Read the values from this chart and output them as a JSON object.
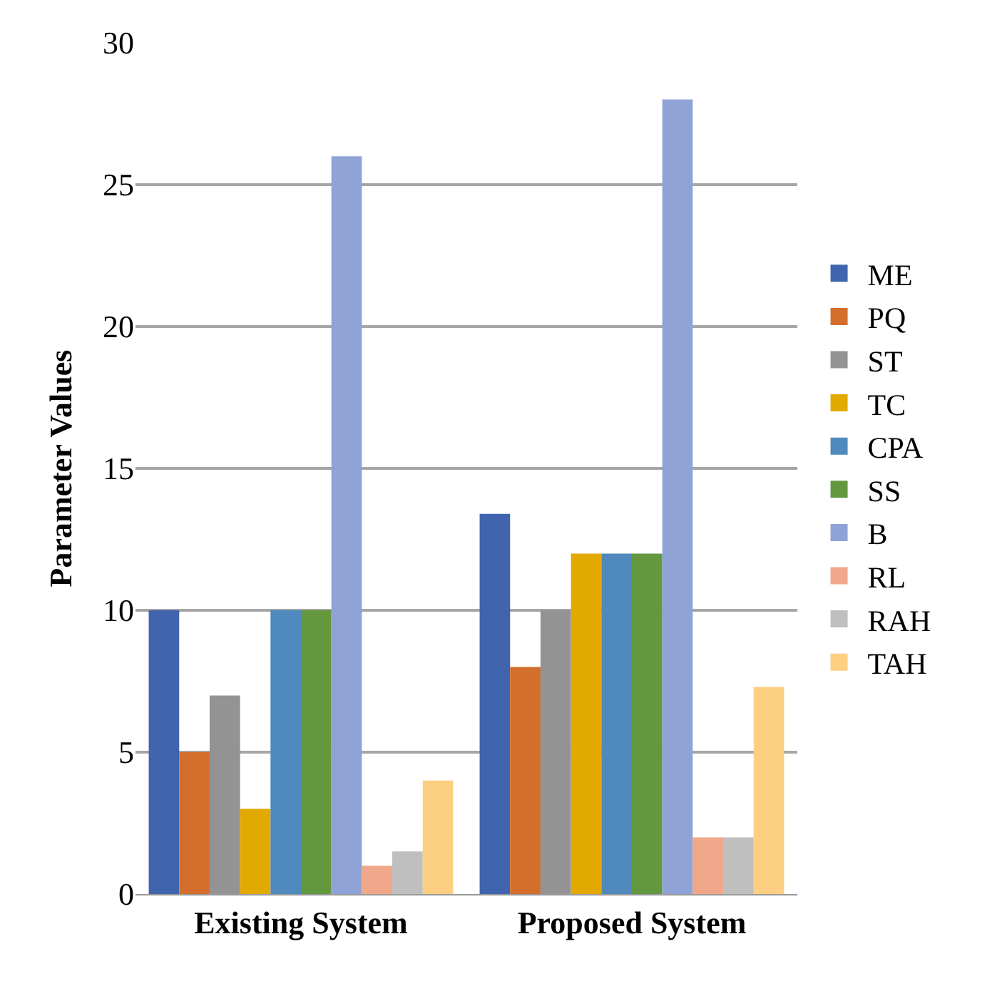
{
  "chart_data": {
    "type": "bar",
    "ylabel": "Parameter Values",
    "categories": [
      "Existing System",
      "Proposed System"
    ],
    "series": [
      {
        "name": "ME",
        "color": "#4064ad",
        "values": [
          10,
          13.4
        ]
      },
      {
        "name": "PQ",
        "color": "#d46e2c",
        "values": [
          5,
          8
        ]
      },
      {
        "name": "ST",
        "color": "#939393",
        "values": [
          7,
          10
        ]
      },
      {
        "name": "TC",
        "color": "#e2a900",
        "values": [
          3,
          12
        ]
      },
      {
        "name": "CPA",
        "color": "#4f89bd",
        "values": [
          10,
          12
        ]
      },
      {
        "name": "SS",
        "color": "#63983f",
        "values": [
          10,
          12
        ]
      },
      {
        "name": "B",
        "color": "#8fa3d6",
        "values": [
          26,
          28
        ]
      },
      {
        "name": "RL",
        "color": "#f0a78a",
        "values": [
          1,
          2
        ]
      },
      {
        "name": "RAH",
        "color": "#bfbfbf",
        "values": [
          1.5,
          2
        ]
      },
      {
        "name": "TAH",
        "color": "#fdcf82",
        "values": [
          4,
          7.3
        ]
      }
    ],
    "ylim": [
      0,
      30
    ],
    "yticks": [
      0,
      5,
      10,
      15,
      20,
      25,
      30
    ],
    "grid": "y",
    "legend": "right"
  }
}
